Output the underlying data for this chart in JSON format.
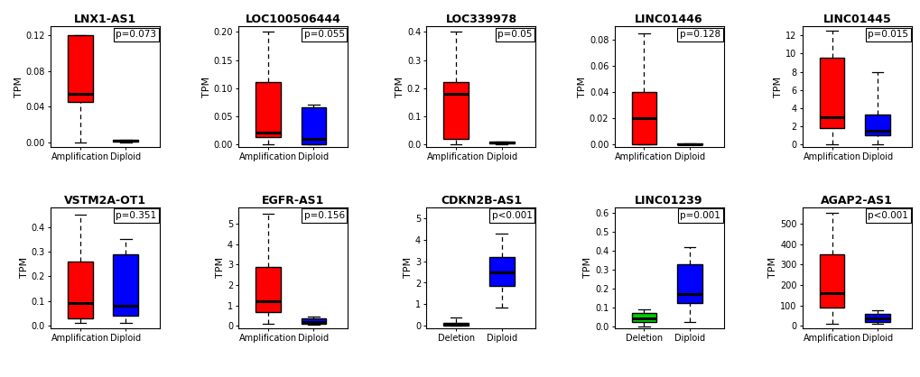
{
  "plots": [
    {
      "title": "LNX1-AS1",
      "pvalue": "p=0.073",
      "ylabel": "TPM",
      "groups": [
        "Amplification",
        "Diploid"
      ],
      "colors": [
        "#FF0000",
        "#FF0000"
      ],
      "stats": [
        {
          "whisker_low": 0.0,
          "q1": 0.045,
          "median": 0.055,
          "q3": 0.12,
          "whisker_high": 0.12
        },
        {
          "whisker_low": 0.0,
          "q1": 0.001,
          "median": 0.002,
          "q3": 0.003,
          "whisker_high": 0.003
        }
      ],
      "ylim": [
        -0.005,
        0.13
      ],
      "yticks": [
        0.0,
        0.04,
        0.08,
        0.12
      ],
      "ytick_labels": [
        "0.00",
        "0.04",
        "0.08",
        "0.12"
      ]
    },
    {
      "title": "LOC100506444",
      "pvalue": "p=0.055",
      "ylabel": "TPM",
      "groups": [
        "Amplification",
        "Diploid"
      ],
      "colors": [
        "#FF0000",
        "#0000FF"
      ],
      "stats": [
        {
          "whisker_low": 0.0,
          "q1": 0.013,
          "median": 0.02,
          "q3": 0.11,
          "whisker_high": 0.2
        },
        {
          "whisker_low": 0.0,
          "q1": 0.0,
          "median": 0.01,
          "q3": 0.065,
          "whisker_high": 0.07
        }
      ],
      "ylim": [
        -0.005,
        0.21
      ],
      "yticks": [
        0.0,
        0.05,
        0.1,
        0.15,
        0.2
      ],
      "ytick_labels": [
        "0.00",
        "0.05",
        "0.10",
        "0.15",
        "0.20"
      ]
    },
    {
      "title": "LOC339978",
      "pvalue": "p=0.05",
      "ylabel": "TPM",
      "groups": [
        "Amplification",
        "Diploid"
      ],
      "colors": [
        "#FF0000",
        "#FF0000"
      ],
      "stats": [
        {
          "whisker_low": 0.0,
          "q1": 0.02,
          "median": 0.18,
          "q3": 0.22,
          "whisker_high": 0.4
        },
        {
          "whisker_low": 0.0,
          "q1": 0.002,
          "median": 0.005,
          "q3": 0.008,
          "whisker_high": 0.01
        }
      ],
      "ylim": [
        -0.01,
        0.42
      ],
      "yticks": [
        0.0,
        0.1,
        0.2,
        0.3,
        0.4
      ],
      "ytick_labels": [
        "0.0",
        "0.1",
        "0.2",
        "0.3",
        "0.4"
      ]
    },
    {
      "title": "LINC01446",
      "pvalue": "p=0.128",
      "ylabel": "TPM",
      "groups": [
        "Amplification",
        "Diploid"
      ],
      "colors": [
        "#FF0000",
        "#FF0000"
      ],
      "stats": [
        {
          "whisker_low": 0.0,
          "q1": 0.0,
          "median": 0.02,
          "q3": 0.04,
          "whisker_high": 0.085
        },
        {
          "whisker_low": 0.0,
          "q1": 0.0,
          "median": 0.0,
          "q3": 0.001,
          "whisker_high": 0.001
        }
      ],
      "ylim": [
        -0.002,
        0.09
      ],
      "yticks": [
        0.0,
        0.02,
        0.04,
        0.06,
        0.08
      ],
      "ytick_labels": [
        "0.00",
        "0.02",
        "0.04",
        "0.06",
        "0.08"
      ]
    },
    {
      "title": "LINC01445",
      "pvalue": "p=0.015",
      "ylabel": "TPM",
      "groups": [
        "Amplification",
        "Diploid"
      ],
      "colors": [
        "#FF0000",
        "#0000FF"
      ],
      "stats": [
        {
          "whisker_low": 0.0,
          "q1": 1.8,
          "median": 3.0,
          "q3": 9.5,
          "whisker_high": 12.5
        },
        {
          "whisker_low": 0.0,
          "q1": 1.0,
          "median": 1.5,
          "q3": 3.3,
          "whisker_high": 8.0
        }
      ],
      "ylim": [
        -0.3,
        13
      ],
      "yticks": [
        0,
        2,
        4,
        6,
        8,
        10,
        12
      ],
      "ytick_labels": [
        "0",
        "2",
        "4",
        "6",
        "8",
        "10",
        "12"
      ]
    },
    {
      "title": "VSTM2A-OT1",
      "pvalue": "p=0.351",
      "ylabel": "TPM",
      "groups": [
        "Amplification",
        "Diploid"
      ],
      "colors": [
        "#FF0000",
        "#0000FF"
      ],
      "stats": [
        {
          "whisker_low": 0.01,
          "q1": 0.03,
          "median": 0.09,
          "q3": 0.26,
          "whisker_high": 0.45
        },
        {
          "whisker_low": 0.01,
          "q1": 0.04,
          "median": 0.08,
          "q3": 0.29,
          "whisker_high": 0.35
        }
      ],
      "ylim": [
        -0.01,
        0.48
      ],
      "yticks": [
        0.0,
        0.1,
        0.2,
        0.3,
        0.4
      ],
      "ytick_labels": [
        "0.0",
        "0.1",
        "0.2",
        "0.3",
        "0.4"
      ]
    },
    {
      "title": "EGFR-AS1",
      "pvalue": "p=0.156",
      "ylabel": "TPM",
      "groups": [
        "Amplification",
        "Diploid"
      ],
      "colors": [
        "#FF0000",
        "#0000FF"
      ],
      "stats": [
        {
          "whisker_low": 0.1,
          "q1": 0.7,
          "median": 1.2,
          "q3": 2.9,
          "whisker_high": 5.5
        },
        {
          "whisker_low": 0.05,
          "q1": 0.1,
          "median": 0.18,
          "q3": 0.38,
          "whisker_high": 0.45
        }
      ],
      "ylim": [
        -0.1,
        5.8
      ],
      "yticks": [
        0,
        1,
        2,
        3,
        4,
        5
      ],
      "ytick_labels": [
        "0",
        "1",
        "2",
        "3",
        "4",
        "5"
      ]
    },
    {
      "title": "CDKN2B-AS1",
      "pvalue": "p<0.001",
      "ylabel": "TPM",
      "groups": [
        "Deletion",
        "Diploid"
      ],
      "colors": [
        "#404040",
        "#0000FF"
      ],
      "stats": [
        {
          "whisker_low": 0.0,
          "q1": 0.03,
          "median": 0.1,
          "q3": 0.15,
          "whisker_high": 0.38
        },
        {
          "whisker_low": 0.85,
          "q1": 1.85,
          "median": 2.5,
          "q3": 3.2,
          "whisker_high": 4.3
        }
      ],
      "ylim": [
        -0.1,
        5.5
      ],
      "yticks": [
        0,
        1,
        2,
        3,
        4,
        5
      ],
      "ytick_labels": [
        "0",
        "1",
        "2",
        "3",
        "4",
        "5"
      ]
    },
    {
      "title": "LINC01239",
      "pvalue": "p=0.001",
      "ylabel": "TPM",
      "groups": [
        "Deletion",
        "Diploid"
      ],
      "colors": [
        "#00CC00",
        "#0000FF"
      ],
      "stats": [
        {
          "whisker_low": 0.0,
          "q1": 0.02,
          "median": 0.04,
          "q3": 0.07,
          "whisker_high": 0.09
        },
        {
          "whisker_low": 0.02,
          "q1": 0.12,
          "median": 0.17,
          "q3": 0.33,
          "whisker_high": 0.42
        }
      ],
      "ylim": [
        -0.01,
        0.63
      ],
      "yticks": [
        0.0,
        0.1,
        0.2,
        0.3,
        0.4,
        0.5,
        0.6
      ],
      "ytick_labels": [
        "0.0",
        "0.1",
        "0.2",
        "0.3",
        "0.4",
        "0.5",
        "0.6"
      ]
    },
    {
      "title": "AGAP2-AS1",
      "pvalue": "p<0.001",
      "ylabel": "TPM",
      "groups": [
        "Amplification",
        "Diploid"
      ],
      "colors": [
        "#FF0000",
        "#0000FF"
      ],
      "stats": [
        {
          "whisker_low": 10,
          "q1": 90,
          "median": 160,
          "q3": 350,
          "whisker_high": 555
        },
        {
          "whisker_low": 10,
          "q1": 20,
          "median": 35,
          "q3": 60,
          "whisker_high": 75
        }
      ],
      "ylim": [
        -10,
        580
      ],
      "yticks": [
        0,
        100,
        200,
        300,
        400,
        500
      ],
      "ytick_labels": [
        "0",
        "100",
        "200",
        "300",
        "400",
        "500"
      ]
    }
  ]
}
